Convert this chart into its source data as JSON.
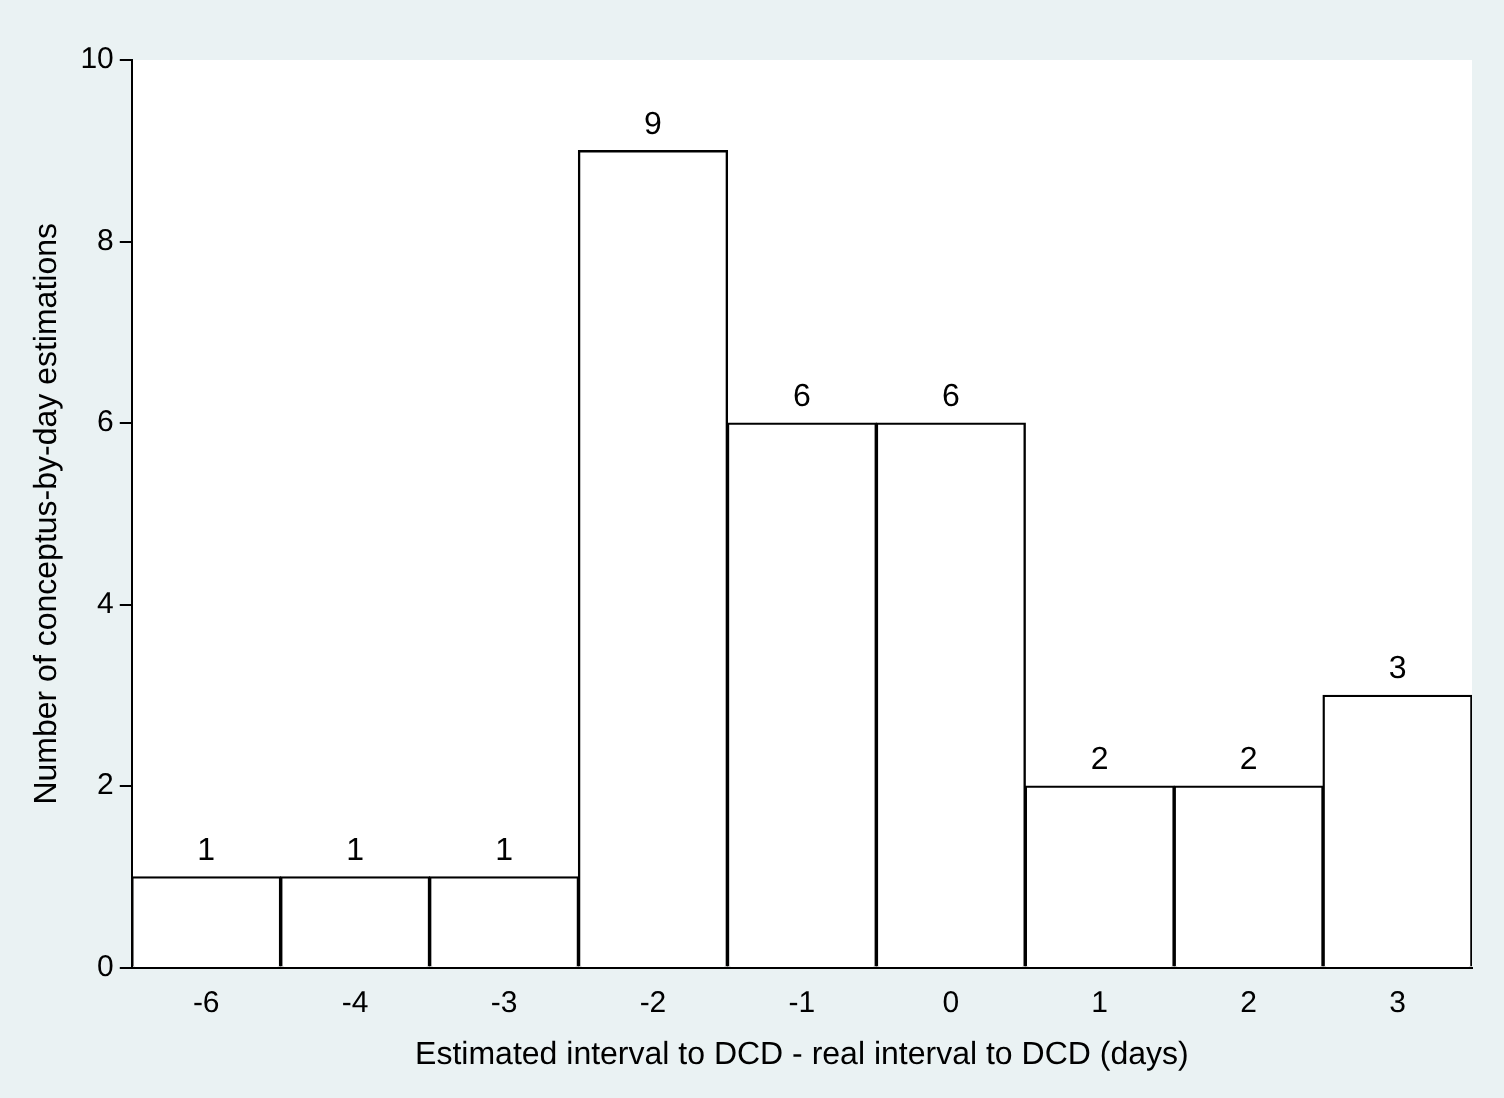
{
  "chart_data": {
    "type": "bar",
    "xlabel": "Estimated interval to DCD - real interval to DCD (days)",
    "ylabel": "Number of conceptus-by-day estimations",
    "categories": [
      "-6",
      "-4",
      "-3",
      "-2",
      "-1",
      "0",
      "1",
      "2",
      "3"
    ],
    "values": [
      1,
      1,
      1,
      9,
      6,
      6,
      2,
      2,
      3
    ],
    "color": "#ffffff",
    "ylim": [
      0,
      10
    ],
    "yticks": [
      0,
      2,
      4,
      6,
      8,
      10
    ],
    "grid": false,
    "data_labels": true
  }
}
